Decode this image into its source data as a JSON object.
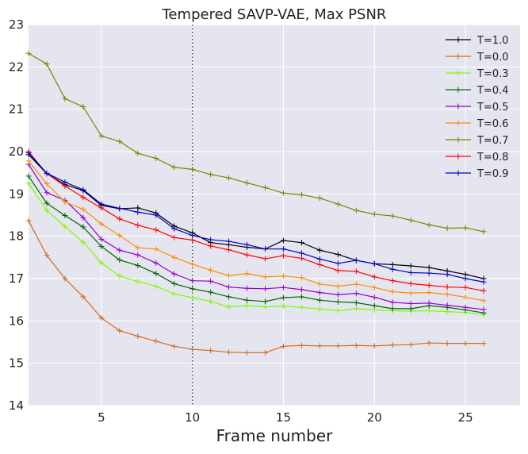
{
  "chart_data": {
    "type": "line",
    "title": "Tempered SAVP-VAE, Max PSNR",
    "xlabel": "Frame number",
    "ylabel": "",
    "xlim": [
      1,
      28
    ],
    "ylim": [
      14,
      23
    ],
    "xticks": [
      5,
      10,
      15,
      20,
      25
    ],
    "yticks": [
      14,
      15,
      16,
      17,
      18,
      19,
      20,
      21,
      22,
      23
    ],
    "grid": true,
    "background": "#e5e5ef",
    "legend_position": "top-right",
    "vertical_reference_line": {
      "x": 10,
      "style": "dotted",
      "color": "#222222"
    },
    "x": [
      1,
      2,
      3,
      4,
      5,
      6,
      7,
      8,
      9,
      10,
      11,
      12,
      13,
      14,
      15,
      16,
      17,
      18,
      19,
      20,
      21,
      22,
      23,
      24,
      25,
      26
    ],
    "series": [
      {
        "name": "T=1.0",
        "color": "#000000",
        "values": [
          19.93,
          19.48,
          19.22,
          19.08,
          18.73,
          18.65,
          18.67,
          18.55,
          18.24,
          18.08,
          17.85,
          17.8,
          17.74,
          17.7,
          17.9,
          17.85,
          17.67,
          17.57,
          17.43,
          17.35,
          17.33,
          17.3,
          17.26,
          17.18,
          17.1,
          17.0
        ]
      },
      {
        "name": "T=0.0",
        "color": "#d2691e",
        "values": [
          18.37,
          17.55,
          17.0,
          16.57,
          16.07,
          15.77,
          15.64,
          15.52,
          15.4,
          15.33,
          15.3,
          15.26,
          15.25,
          15.25,
          15.4,
          15.42,
          15.41,
          15.41,
          15.42,
          15.41,
          15.43,
          15.44,
          15.48,
          15.47,
          15.47,
          15.47
        ]
      },
      {
        "name": "T=0.3",
        "color": "#7cfc00",
        "values": [
          19.25,
          18.61,
          18.23,
          17.86,
          17.37,
          17.06,
          16.93,
          16.82,
          16.64,
          16.55,
          16.46,
          16.33,
          16.36,
          16.33,
          16.35,
          16.32,
          16.28,
          16.24,
          16.29,
          16.26,
          16.24,
          16.23,
          16.24,
          16.22,
          16.2,
          16.15
        ]
      },
      {
        "name": "T=0.4",
        "color": "#006400",
        "values": [
          19.42,
          18.78,
          18.49,
          18.22,
          17.76,
          17.44,
          17.31,
          17.12,
          16.88,
          16.76,
          16.68,
          16.57,
          16.49,
          16.46,
          16.55,
          16.57,
          16.49,
          16.45,
          16.43,
          16.36,
          16.29,
          16.29,
          16.36,
          16.32,
          16.26,
          16.19
        ]
      },
      {
        "name": "T=0.5",
        "color": "#9400d3",
        "values": [
          19.7,
          19.03,
          18.85,
          18.44,
          17.93,
          17.67,
          17.56,
          17.37,
          17.11,
          16.95,
          16.94,
          16.8,
          16.77,
          16.76,
          16.79,
          16.74,
          16.67,
          16.62,
          16.65,
          16.56,
          16.44,
          16.41,
          16.42,
          16.37,
          16.32,
          16.27
        ]
      },
      {
        "name": "T=0.6",
        "color": "#ff8c00",
        "values": [
          19.78,
          19.24,
          18.81,
          18.64,
          18.29,
          18.02,
          17.73,
          17.7,
          17.5,
          17.34,
          17.2,
          17.07,
          17.12,
          17.04,
          17.06,
          17.02,
          16.87,
          16.82,
          16.87,
          16.79,
          16.69,
          16.66,
          16.67,
          16.63,
          16.56,
          16.48
        ]
      },
      {
        "name": "T=0.7",
        "color": "#808000",
        "values": [
          22.32,
          22.07,
          21.25,
          21.06,
          20.37,
          20.24,
          19.96,
          19.84,
          19.63,
          19.58,
          19.46,
          19.38,
          19.26,
          19.15,
          19.02,
          18.98,
          18.9,
          18.76,
          18.61,
          18.52,
          18.48,
          18.38,
          18.27,
          18.19,
          18.2,
          18.11
        ]
      },
      {
        "name": "T=0.8",
        "color": "#ff0000",
        "values": [
          20.0,
          19.48,
          19.19,
          18.92,
          18.67,
          18.41,
          18.26,
          18.15,
          17.97,
          17.91,
          17.77,
          17.68,
          17.56,
          17.47,
          17.54,
          17.48,
          17.33,
          17.19,
          17.17,
          17.04,
          16.95,
          16.88,
          16.84,
          16.8,
          16.79,
          16.71
        ]
      },
      {
        "name": "T=0.9",
        "color": "#0000cd",
        "values": [
          19.97,
          19.49,
          19.28,
          19.1,
          18.76,
          18.66,
          18.57,
          18.5,
          18.18,
          18.02,
          17.92,
          17.88,
          17.8,
          17.7,
          17.7,
          17.6,
          17.46,
          17.36,
          17.43,
          17.35,
          17.22,
          17.14,
          17.13,
          17.1,
          17.0,
          16.92
        ]
      }
    ]
  }
}
